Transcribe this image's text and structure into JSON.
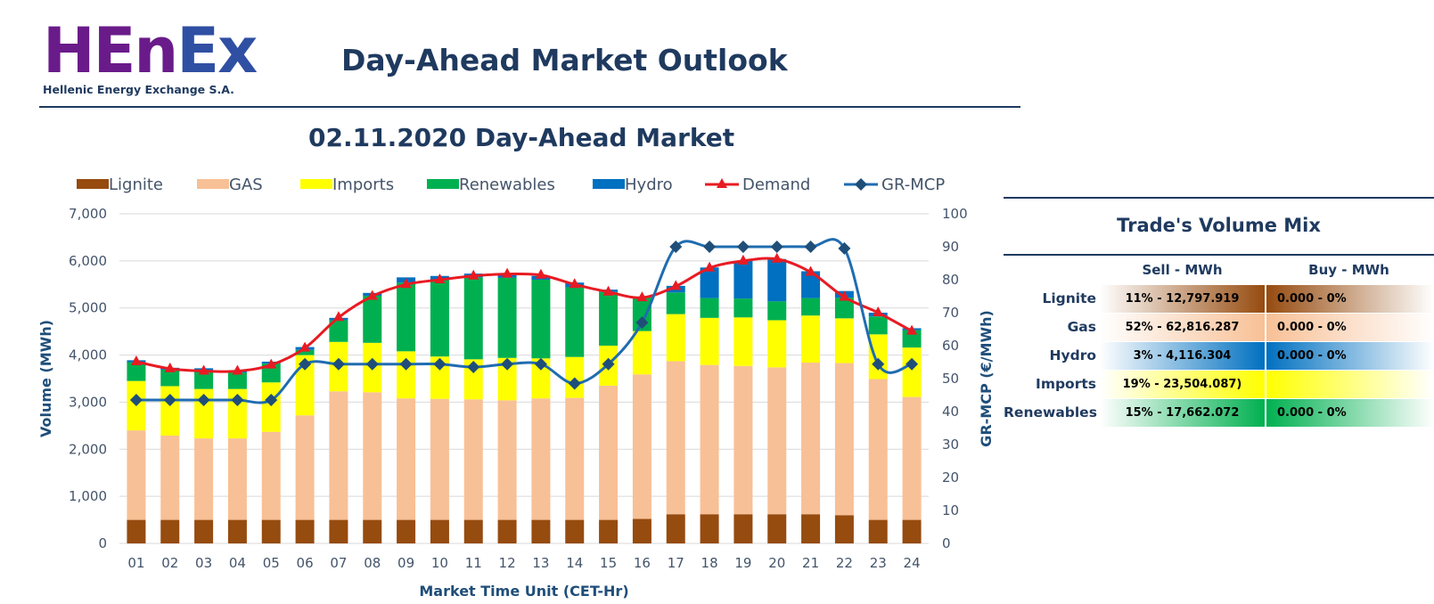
{
  "header": {
    "logo_main_1": "HEn",
    "logo_main_2": "Ex",
    "logo_sub": "Hellenic Energy Exchange S.A.",
    "page_title": "Day-Ahead Market Outlook"
  },
  "chart_data": {
    "type": "bar",
    "title": "02.11.2020  Day-Ahead Market",
    "xlabel": "Market Time Unit (CET-Hr)",
    "ylabel": "Volume (MWh)",
    "y2label": "GR-MCP (€/MWh)",
    "ylim": [
      0,
      7000
    ],
    "y2lim": [
      0,
      100
    ],
    "yticks": [
      "0",
      "1,000",
      "2,000",
      "3,000",
      "4,000",
      "5,000",
      "6,000",
      "7,000"
    ],
    "y2ticks": [
      "0",
      "10",
      "20",
      "30",
      "40",
      "50",
      "60",
      "70",
      "80",
      "90",
      "100"
    ],
    "grid": true,
    "legend_position": "top",
    "categories": [
      "01",
      "02",
      "03",
      "04",
      "05",
      "06",
      "07",
      "08",
      "09",
      "10",
      "11",
      "12",
      "13",
      "14",
      "15",
      "16",
      "17",
      "18",
      "19",
      "20",
      "21",
      "22",
      "23",
      "24"
    ],
    "stacked_series": [
      {
        "name": "Lignite",
        "color": "#964B0F",
        "values": [
          500,
          500,
          500,
          500,
          500,
          500,
          500,
          500,
          500,
          500,
          500,
          500,
          500,
          500,
          500,
          520,
          620,
          620,
          620,
          620,
          620,
          600,
          500,
          500
        ]
      },
      {
        "name": "GAS",
        "color": "#F8C096",
        "values": [
          1900,
          1790,
          1730,
          1730,
          1870,
          2220,
          2730,
          2710,
          2580,
          2570,
          2560,
          2540,
          2580,
          2590,
          2850,
          3070,
          3250,
          3170,
          3150,
          3120,
          3220,
          3230,
          2990,
          2610
        ]
      },
      {
        "name": "Imports",
        "color": "#FFFF00",
        "values": [
          1050,
          1050,
          1050,
          1050,
          1050,
          1280,
          1050,
          1050,
          1000,
          900,
          850,
          900,
          850,
          870,
          850,
          920,
          1000,
          1000,
          1030,
          1000,
          1000,
          950,
          950,
          1050
        ]
      },
      {
        "name": "Renewables",
        "color": "#00B050",
        "values": [
          400,
          350,
          400,
          350,
          400,
          110,
          460,
          1000,
          1460,
          1630,
          1740,
          1700,
          1670,
          1480,
          1140,
          720,
          460,
          420,
          400,
          400,
          370,
          440,
          380,
          370
        ]
      },
      {
        "name": "Hydro",
        "color": "#0070C0",
        "values": [
          40,
          40,
          40,
          40,
          40,
          60,
          50,
          60,
          110,
          80,
          80,
          80,
          80,
          100,
          50,
          0,
          140,
          650,
          800,
          900,
          570,
          140,
          80,
          40
        ]
      }
    ],
    "line_series": [
      {
        "name": "Demand",
        "color": "#E81B23",
        "marker": "triangle",
        "axis": "left",
        "values": [
          3860,
          3710,
          3660,
          3660,
          3790,
          4150,
          4800,
          5250,
          5500,
          5600,
          5680,
          5720,
          5700,
          5500,
          5340,
          5220,
          5460,
          5850,
          6000,
          6040,
          5760,
          5230,
          4900,
          4510
        ]
      },
      {
        "name": "GR-MCP",
        "color": "#1F6CB0",
        "marker": "diamond",
        "axis": "right",
        "values": [
          43.5,
          43.5,
          43.5,
          43.5,
          43.5,
          54.4,
          54.4,
          54.4,
          54.4,
          54.4,
          53.5,
          54.4,
          54.4,
          48.5,
          54.4,
          67,
          90,
          90,
          90,
          90,
          90,
          89.5,
          54.4,
          54.4
        ]
      }
    ]
  },
  "mix": {
    "title": "Trade's Volume Mix",
    "sell_header": "Sell - MWh",
    "buy_header": "Buy - MWh",
    "rows": [
      {
        "label": "Lignite",
        "sell": "11% - 12,797.919",
        "buy": "0.000 - 0%",
        "color": "#964B0F"
      },
      {
        "label": "Gas",
        "sell": "52% - 62,816.287",
        "buy": "0.000 - 0%",
        "color": "#F8C096"
      },
      {
        "label": "Hydro",
        "sell": "3% - 4,116.304",
        "buy": "0.000 - 0%",
        "color": "#0070C0"
      },
      {
        "label": "Imports",
        "sell": "19% - 23,504.087)",
        "buy": "",
        "color": "#FFFF00"
      },
      {
        "label": "Renewables",
        "sell": "15% - 17,662.072",
        "buy": "0.000 - 0%",
        "color": "#00B050"
      }
    ]
  }
}
